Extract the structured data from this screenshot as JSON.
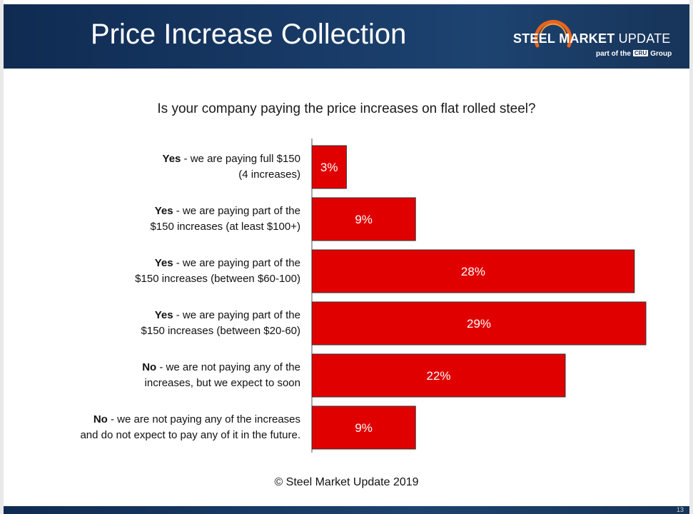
{
  "header": {
    "title": "Price Increase Collection",
    "logo": {
      "word1": "STEEL",
      "word2": "MARKET",
      "word3": "UPDATE",
      "sub_prefix": "part of the",
      "sub_brand": "CRU",
      "sub_suffix": "Group"
    }
  },
  "footer": {
    "copyright": "© Steel Market Update 2019",
    "page_number": "13"
  },
  "colors": {
    "bar": "#e00000",
    "bar_stroke": "#333333",
    "header_bg": "#183a66"
  },
  "chart_data": {
    "type": "bar",
    "orientation": "horizontal",
    "title": "Is your company paying the price increases on flat rolled steel?",
    "xlabel": "",
    "ylabel": "",
    "xlim": [
      0,
      29
    ],
    "grid": false,
    "categories": [
      {
        "bold": "Yes",
        "rest": " - we are paying full $150",
        "line2": "(4 increases)"
      },
      {
        "bold": "Yes",
        "rest": " - we are paying part of the",
        "line2": "$150 increases (at least $100+)"
      },
      {
        "bold": "Yes",
        "rest": " - we are paying part of the",
        "line2": "$150 increases (between $60-100)"
      },
      {
        "bold": "Yes",
        "rest": " - we are paying part of the",
        "line2": "$150 increases (between $20-60)"
      },
      {
        "bold": "No",
        "rest": " - we are not paying any of the",
        "line2": "increases, but we expect to soon"
      },
      {
        "bold": "No",
        "rest": " - we are not paying any of the increases",
        "line2": "and do not expect to pay any of it in the future."
      }
    ],
    "values": [
      3,
      9,
      28,
      29,
      22,
      9
    ],
    "value_labels": [
      "3%",
      "9%",
      "28%",
      "29%",
      "22%",
      "9%"
    ]
  }
}
